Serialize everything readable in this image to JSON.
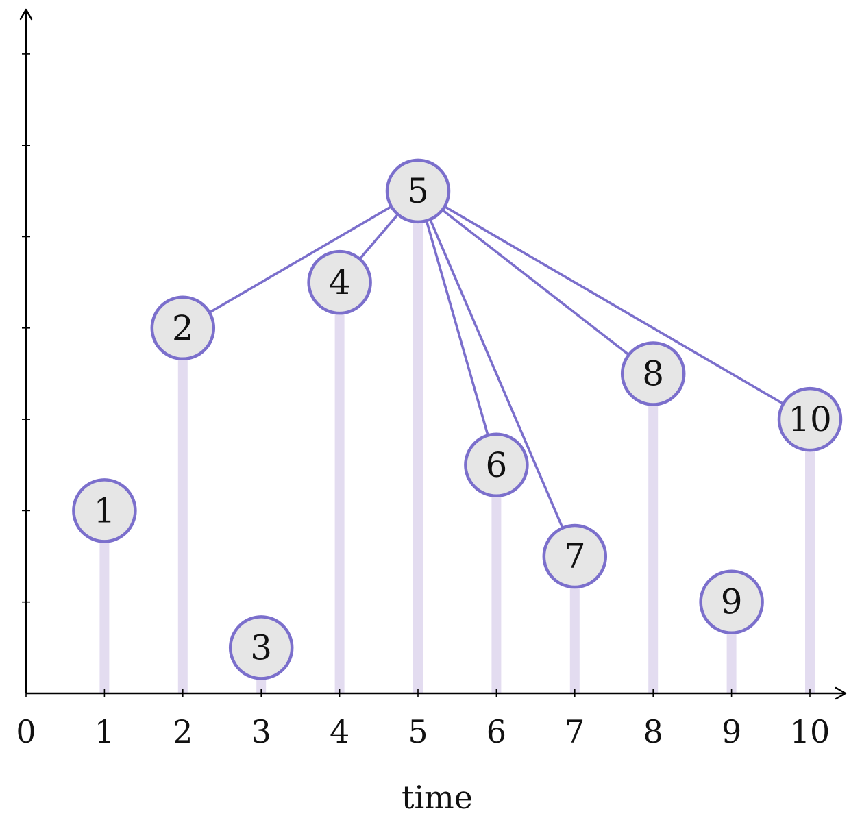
{
  "diagram": {
    "xlabel": "time",
    "x_ticks": [
      "0",
      "1",
      "2",
      "3",
      "4",
      "5",
      "6",
      "7",
      "8",
      "9",
      "10"
    ],
    "y_tick_count": 7,
    "colors": {
      "node_fill": "#e6e6e6",
      "node_stroke": "#7b6fcc",
      "edge": "#7b6fcc",
      "stem": "#e3dcf0",
      "axis": "#000000"
    },
    "nodes": [
      {
        "id": "1",
        "label": "1",
        "x": 1,
        "y": 2
      },
      {
        "id": "2",
        "label": "2",
        "x": 2,
        "y": 4
      },
      {
        "id": "3",
        "label": "3",
        "x": 3,
        "y": 0.5
      },
      {
        "id": "4",
        "label": "4",
        "x": 4,
        "y": 4.5
      },
      {
        "id": "5",
        "label": "5",
        "x": 5,
        "y": 5.5
      },
      {
        "id": "6",
        "label": "6",
        "x": 6,
        "y": 2.5
      },
      {
        "id": "7",
        "label": "7",
        "x": 7,
        "y": 1.5
      },
      {
        "id": "8",
        "label": "8",
        "x": 8,
        "y": 3.5
      },
      {
        "id": "9",
        "label": "9",
        "x": 9,
        "y": 1
      },
      {
        "id": "10",
        "label": "10",
        "x": 10,
        "y": 3
      }
    ],
    "edges": [
      {
        "from": "5",
        "to": "2"
      },
      {
        "from": "5",
        "to": "4"
      },
      {
        "from": "5",
        "to": "6"
      },
      {
        "from": "5",
        "to": "7"
      },
      {
        "from": "5",
        "to": "8"
      },
      {
        "from": "5",
        "to": "10"
      }
    ]
  }
}
